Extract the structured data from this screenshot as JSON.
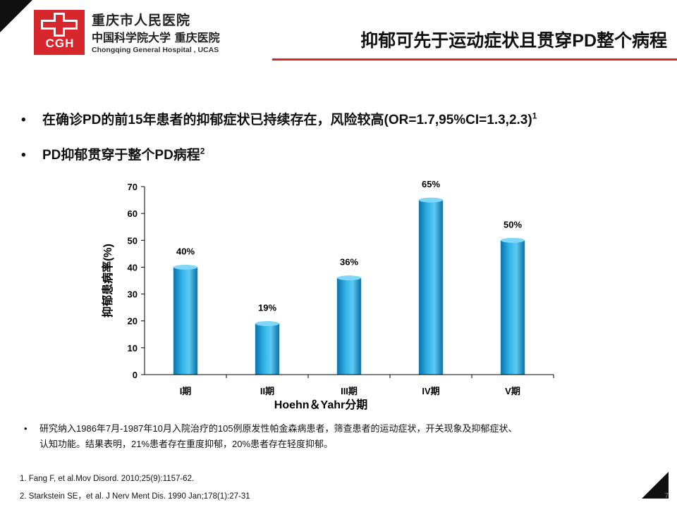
{
  "header": {
    "logo_text": "CGH",
    "hospital_cn_line1": "重庆市人民医院",
    "hospital_cn_line2": "中国科学院大学 重庆医院",
    "hospital_en": "Chongqing General Hospital , UCAS",
    "title": "抑郁可先于运动症状且贯穿PD整个病程"
  },
  "bullets": [
    {
      "text": "在确诊PD的前15年患者的抑郁症状已持续存在，风险较高(OR=1.7,95%CI=1.3,2.3)",
      "sup": "1"
    },
    {
      "text": "PD抑郁贯穿于整个PD病程",
      "sup": "2"
    }
  ],
  "chart_data": {
    "type": "bar",
    "categories": [
      "I期",
      "II期",
      "III期",
      "IV期",
      "V期"
    ],
    "values": [
      40,
      19,
      36,
      65,
      50
    ],
    "data_labels": [
      "40%",
      "19%",
      "36%",
      "65%",
      "50%"
    ],
    "xlabel": "Hoehn＆Yahr分期",
    "ylabel": "抑郁患病率(%)",
    "ylim": [
      0,
      70
    ],
    "yticks": [
      0,
      10,
      20,
      30,
      40,
      50,
      60,
      70
    ],
    "grid": false,
    "bar_color": "#1ea4dc"
  },
  "note": {
    "line1": "研究纳入1986年7月-1987年10月入院治疗的105例原发性帕金森病患者，筛查患者的运动症状，开关现象及抑郁症状、",
    "line2": "认知功能。结果表明，21%患者存在重度抑郁，20%患者存在轻度抑郁。"
  },
  "references": [
    "1. Fang F, et al.Mov Disord. 2010;25(9):1157-62.",
    "2. Starkstein SE，et al. J Nerv Ment Dis. 1990 Jan;178(1):27-31"
  ],
  "page_number": "7",
  "colors": {
    "accent": "#d8262d"
  }
}
